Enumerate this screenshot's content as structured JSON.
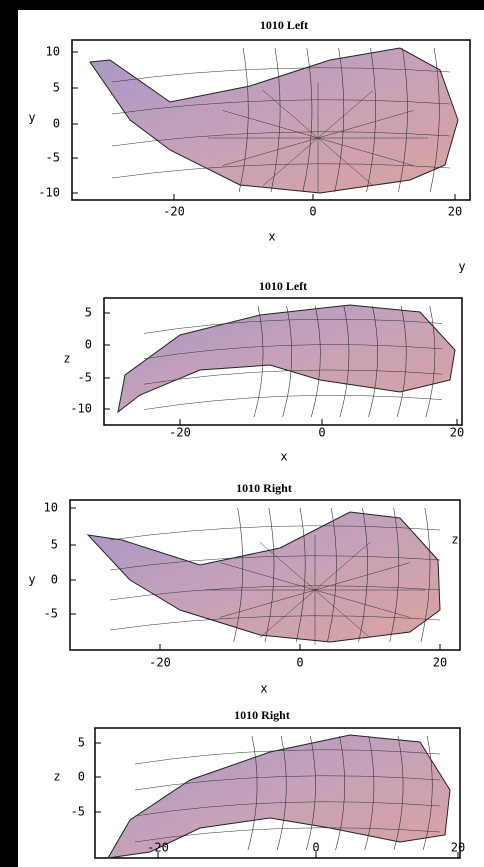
{
  "panels": [
    {
      "title": "1010 Left",
      "x_label": "x",
      "v_label": "y",
      "v_ticks": [
        10,
        5,
        0,
        -5,
        -10
      ],
      "x_ticks": [
        -20,
        0,
        20
      ]
    },
    {
      "title": "1010 Left",
      "x_label": "x",
      "v_label": "z",
      "corner_label": "y",
      "v_ticks": [
        5,
        0,
        -5,
        -10
      ],
      "x_ticks": [
        -20,
        0,
        20
      ]
    },
    {
      "title": "1010 Right",
      "x_label": "x",
      "v_label": "y",
      "corner_label": "z",
      "v_ticks": [
        10,
        5,
        0,
        -5
      ],
      "x_ticks": [
        -20,
        0,
        20
      ]
    },
    {
      "title": "1010 Right",
      "v_label": "z",
      "v_ticks": [
        5,
        0,
        -5
      ],
      "x_ticks": [
        -20,
        0,
        20
      ]
    }
  ]
}
